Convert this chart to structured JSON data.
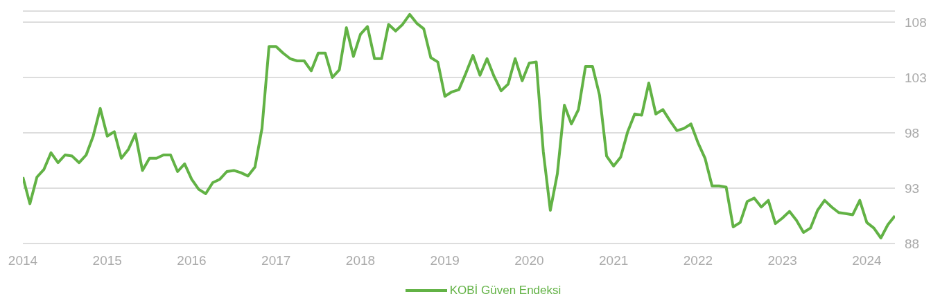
{
  "chart_data": {
    "type": "line",
    "x": [
      "2014-01",
      "2014-02",
      "2014-03",
      "2014-04",
      "2014-05",
      "2014-06",
      "2014-07",
      "2014-08",
      "2014-09",
      "2014-10",
      "2014-11",
      "2014-12",
      "2015-01",
      "2015-02",
      "2015-03",
      "2015-04",
      "2015-05",
      "2015-06",
      "2015-07",
      "2015-08",
      "2015-09",
      "2015-10",
      "2015-11",
      "2015-12",
      "2016-01",
      "2016-02",
      "2016-03",
      "2016-04",
      "2016-05",
      "2016-06",
      "2016-07",
      "2016-08",
      "2016-09",
      "2016-10",
      "2016-11",
      "2016-12",
      "2017-01",
      "2017-02",
      "2017-03",
      "2017-04",
      "2017-05",
      "2017-06",
      "2017-07",
      "2017-08",
      "2017-09",
      "2017-10",
      "2017-11",
      "2017-12",
      "2018-01",
      "2018-02",
      "2018-03",
      "2018-04",
      "2018-05",
      "2018-06",
      "2018-07",
      "2018-08",
      "2018-09",
      "2018-10",
      "2018-11",
      "2018-12",
      "2019-01",
      "2019-02",
      "2019-03",
      "2019-04",
      "2019-05",
      "2019-06",
      "2019-07",
      "2019-08",
      "2019-09",
      "2019-10",
      "2019-11",
      "2019-12",
      "2020-01",
      "2020-02",
      "2020-03",
      "2020-04",
      "2020-05",
      "2020-06",
      "2020-07",
      "2020-08",
      "2020-09",
      "2020-10",
      "2020-11",
      "2020-12",
      "2021-01",
      "2021-02",
      "2021-03",
      "2021-04",
      "2021-05",
      "2021-06",
      "2021-07",
      "2021-08",
      "2021-09",
      "2021-10",
      "2021-11",
      "2021-12",
      "2022-01",
      "2022-02",
      "2022-03",
      "2022-04",
      "2022-05",
      "2022-06",
      "2022-07",
      "2022-08",
      "2022-09",
      "2022-10",
      "2022-11",
      "2022-12",
      "2023-01",
      "2023-02",
      "2023-03",
      "2023-04",
      "2023-05",
      "2023-06",
      "2023-07",
      "2023-08",
      "2023-09",
      "2023-10",
      "2023-11",
      "2023-12",
      "2024-01",
      "2024-02",
      "2024-03",
      "2024-04",
      "2024-05"
    ],
    "series": [
      {
        "name": "KOBİ Güven Endeksi",
        "color": "#62b245",
        "values": [
          94.0,
          91.6,
          94.0,
          94.7,
          96.2,
          95.3,
          96.0,
          95.9,
          95.3,
          96.0,
          97.7,
          100.2,
          97.7,
          98.1,
          95.7,
          96.5,
          97.9,
          94.6,
          95.7,
          95.7,
          96.0,
          96.0,
          94.5,
          95.2,
          93.8,
          92.9,
          92.5,
          93.5,
          93.8,
          94.5,
          94.6,
          94.4,
          94.1,
          94.9,
          98.4,
          105.8,
          105.8,
          105.2,
          104.7,
          104.5,
          104.5,
          103.6,
          105.2,
          105.2,
          103.0,
          103.7,
          107.5,
          104.9,
          106.9,
          107.6,
          104.7,
          104.7,
          107.8,
          107.2,
          107.8,
          108.7,
          107.9,
          107.4,
          104.8,
          104.4,
          101.3,
          101.7,
          101.9,
          103.4,
          105.0,
          103.2,
          104.7,
          103.1,
          101.8,
          102.4,
          104.7,
          102.7,
          104.3,
          104.4,
          96.3,
          91.0,
          94.3,
          100.5,
          98.8,
          100.1,
          104.0,
          104.0,
          101.4,
          95.9,
          95.0,
          95.8,
          98.1,
          99.7,
          99.6,
          102.5,
          99.7,
          100.1,
          99.1,
          98.2,
          98.4,
          98.8,
          97.1,
          95.7,
          93.2,
          93.2,
          93.1,
          89.5,
          89.9,
          91.8,
          92.1,
          91.3,
          91.9,
          89.8,
          90.3,
          90.9,
          90.1,
          89.0,
          89.4,
          91.0,
          91.9,
          91.3,
          90.8,
          90.7,
          90.6,
          91.9,
          89.9,
          89.4,
          88.5,
          89.7,
          90.5
        ]
      }
    ],
    "xlim": [
      "2014-01",
      "2024-05"
    ],
    "xticks": [
      "2014",
      "2015",
      "2016",
      "2017",
      "2018",
      "2019",
      "2020",
      "2021",
      "2022",
      "2023",
      "2024"
    ],
    "ylim": [
      88,
      109
    ],
    "yticks": [
      88,
      93,
      98,
      103,
      108
    ],
    "grid": "y",
    "legend": "bottom",
    "marker": "none",
    "line_style": "solid"
  }
}
